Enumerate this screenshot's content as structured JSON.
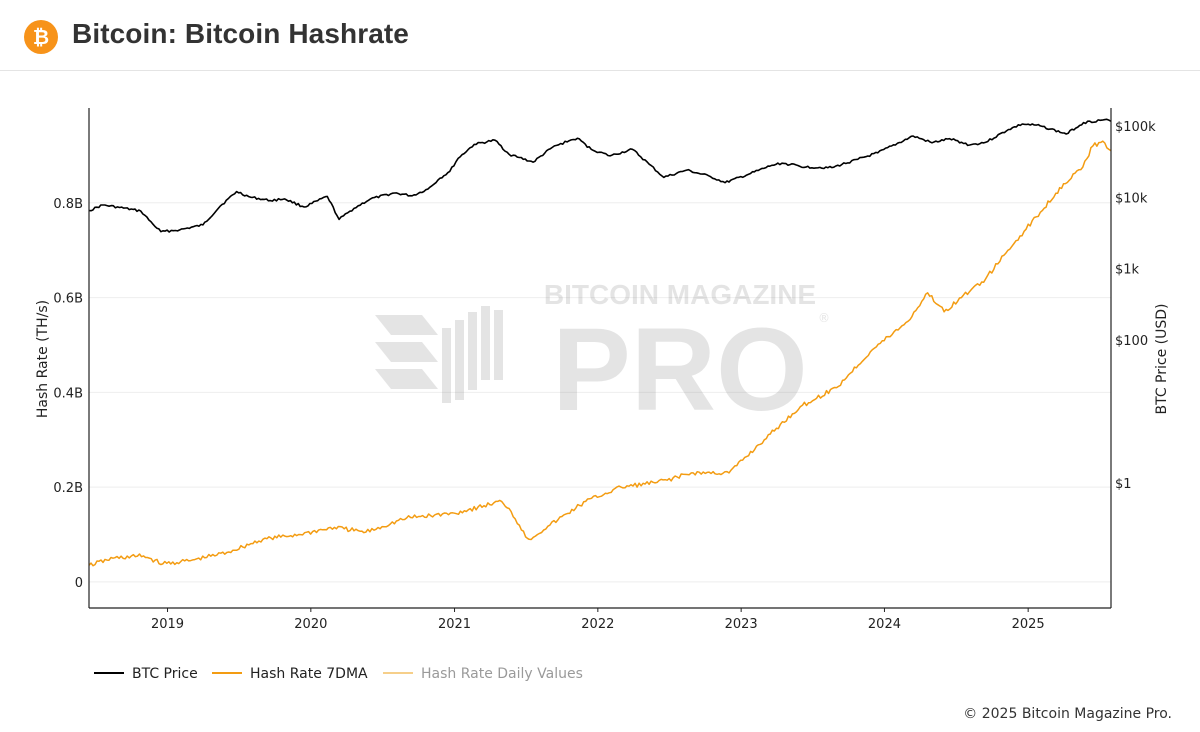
{
  "header": {
    "title": "Bitcoin: Bitcoin Hashrate",
    "logo_glyph": "₿",
    "logo_color": "#f7931a"
  },
  "watermark": {
    "top_text": "BITCOIN MAGAZINE",
    "main_text": "PRO",
    "mark": "®"
  },
  "legend": {
    "items": [
      {
        "label": "BTC Price",
        "color": "#000000"
      },
      {
        "label": "Hash Rate 7DMA",
        "color": "#f39c12"
      },
      {
        "label": "Hash Rate Daily Values",
        "color": "#f6cf8a"
      }
    ]
  },
  "footer": {
    "copyright": "© 2025 Bitcoin Magazine Pro."
  },
  "chart_data": {
    "type": "line",
    "title": "Bitcoin: Bitcoin Hashrate",
    "xlabel": "",
    "ylabel_left": "Hash Rate (TH/s)",
    "ylabel_right": "BTC Price (USD)",
    "x_ticks": [
      "2019",
      "2020",
      "2021",
      "2022",
      "2023",
      "2024",
      "2025"
    ],
    "y_left_ticks": [
      "0",
      "0.2B",
      "0.4B",
      "0.6B",
      "0.8B"
    ],
    "y_right_ticks": [
      "$1",
      "$100",
      "$1k",
      "$10k",
      "$100k"
    ],
    "y_left_range": [
      -0.055,
      1.0
    ],
    "y_right_log_range": [
      -1.75,
      5.25
    ],
    "x_range": [
      "2018-06-15",
      "2025-07-31"
    ],
    "grid": true,
    "legend_position": "bottom-left",
    "series": [
      {
        "name": "BTC Price",
        "axis": "right",
        "color": "#000000",
        "x": [
          "2018-06-15",
          "2018-07-20",
          "2018-09-01",
          "2018-10-25",
          "2018-11-25",
          "2018-12-15",
          "2019-02-01",
          "2019-04-01",
          "2019-05-15",
          "2019-06-26",
          "2019-08-01",
          "2019-09-20",
          "2019-10-26",
          "2019-12-15",
          "2020-02-12",
          "2020-03-13",
          "2020-04-20",
          "2020-06-01",
          "2020-08-01",
          "2020-09-15",
          "2020-10-25",
          "2020-11-25",
          "2020-12-20",
          "2021-01-10",
          "2021-02-20",
          "2021-04-14",
          "2021-05-20",
          "2021-06-15",
          "2021-07-20",
          "2021-09-07",
          "2021-10-20",
          "2021-11-10",
          "2021-12-15",
          "2022-02-01",
          "2022-03-30",
          "2022-05-12",
          "2022-06-18",
          "2022-08-15",
          "2022-10-15",
          "2022-11-21",
          "2023-01-20",
          "2023-03-20",
          "2023-04-15",
          "2023-06-15",
          "2023-08-20",
          "2023-10-25",
          "2023-12-15",
          "2024-03-14",
          "2024-05-01",
          "2024-06-15",
          "2024-08-05",
          "2024-09-15",
          "2024-11-12",
          "2024-12-17",
          "2025-02-01",
          "2025-04-08",
          "2025-05-22",
          "2025-07-14",
          "2025-07-31"
        ],
        "values": [
          6500,
          7800,
          7200,
          6400,
          4200,
          3300,
          3500,
          4100,
          7500,
          12000,
          10000,
          9000,
          9500,
          7300,
          10300,
          4900,
          7000,
          9500,
          11500,
          10500,
          13000,
          18500,
          23000,
          35000,
          55000,
          63000,
          40000,
          36000,
          31000,
          50000,
          62000,
          67000,
          47000,
          38000,
          47000,
          29000,
          19000,
          24000,
          19500,
          16000,
          21000,
          28000,
          30000,
          26500,
          26000,
          34000,
          42000,
          72000,
          58000,
          66000,
          54000,
          59000,
          89000,
          106000,
          100000,
          77000,
          111000,
          122000,
          116000
        ]
      },
      {
        "name": "Hash Rate 7DMA",
        "axis": "left",
        "color": "#f39c12",
        "x": [
          "2018-06-15",
          "2018-08-15",
          "2018-11-01",
          "2018-12-20",
          "2019-03-01",
          "2019-06-01",
          "2019-09-01",
          "2019-12-01",
          "2020-03-01",
          "2020-05-20",
          "2020-09-01",
          "2020-11-01",
          "2021-01-01",
          "2021-05-01",
          "2021-05-20",
          "2021-06-15",
          "2021-07-01",
          "2021-07-10",
          "2021-09-01",
          "2021-12-01",
          "2022-03-01",
          "2022-06-01",
          "2022-09-01",
          "2022-12-01",
          "2023-03-01",
          "2023-06-01",
          "2023-09-01",
          "2023-12-01",
          "2024-03-01",
          "2024-04-20",
          "2024-06-01",
          "2024-07-15",
          "2024-09-15",
          "2024-12-01",
          "2025-02-01",
          "2025-04-01",
          "2025-05-15",
          "2025-06-15",
          "2025-07-10",
          "2025-07-31"
        ],
        "values": [
          0.035,
          0.05,
          0.055,
          0.038,
          0.045,
          0.062,
          0.09,
          0.1,
          0.115,
          0.105,
          0.135,
          0.14,
          0.145,
          0.17,
          0.155,
          0.12,
          0.095,
          0.09,
          0.12,
          0.17,
          0.2,
          0.21,
          0.23,
          0.23,
          0.3,
          0.37,
          0.41,
          0.49,
          0.55,
          0.61,
          0.57,
          0.6,
          0.64,
          0.72,
          0.78,
          0.84,
          0.87,
          0.92,
          0.93,
          0.91
        ]
      },
      {
        "name": "Hash Rate Daily Values",
        "axis": "left",
        "color": "#f6cf8a",
        "x": [],
        "values": []
      }
    ]
  }
}
